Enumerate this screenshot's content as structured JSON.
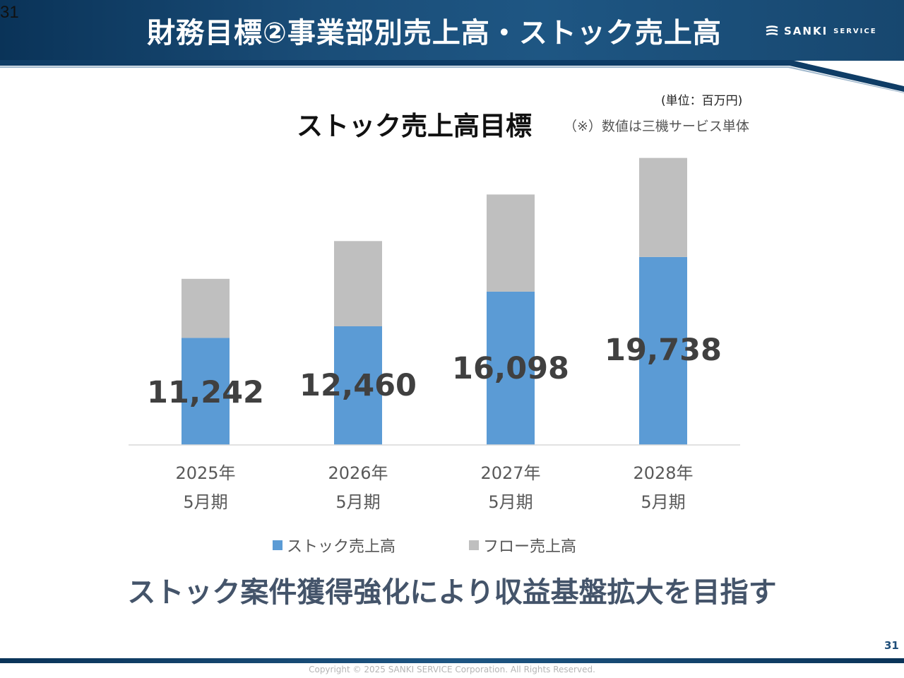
{
  "slide": {
    "corner_number": "31",
    "title": "財務目標②事業部別売上高・ストック売上高",
    "logo_main": "SANKI",
    "logo_sub": "SERVICE",
    "unit": "(単位：百万円)",
    "note": "（※）数値は三機サービス単体",
    "tagline": "ストック案件獲得強化により収益基盤拡大を目指す",
    "page_number": "31",
    "copyright": "Copyright © 2025 SANKI SERVICE Corporation. All Rights Reserved."
  },
  "colors": {
    "stock": "#5b9bd5",
    "flow": "#bfbfbf",
    "header": "#0f3d66",
    "tagline": "#44546a",
    "label": "#404040",
    "axis": "#d9d9d9"
  },
  "chart_data": {
    "type": "bar",
    "stacked": true,
    "title": "ストック売上高目標",
    "categories": [
      [
        "2025年",
        "5月期"
      ],
      [
        "2026年",
        "5月期"
      ],
      [
        "2027年",
        "5月期"
      ],
      [
        "2028年",
        "5月期"
      ]
    ],
    "series": [
      {
        "name": "ストック売上高",
        "values": [
          11242,
          12460,
          16098,
          19738
        ],
        "labels": [
          "11,242",
          "12,460",
          "16,098",
          "19,738"
        ]
      },
      {
        "name": "フロー売上高",
        "values": [
          6200,
          8950,
          10200,
          10400
        ]
      }
    ],
    "ylim": [
      0,
      31000
    ],
    "grid": false,
    "legend": "bottom"
  }
}
